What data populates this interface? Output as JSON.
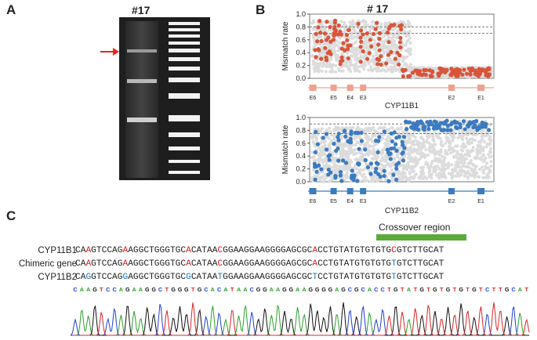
{
  "panels": {
    "a": "A",
    "b": "B",
    "c": "C"
  },
  "gel": {
    "title": "#17"
  },
  "plots_title": "# 17",
  "chart_data": [
    {
      "type": "scatter",
      "title": "# 17",
      "ylabel": "Mismatch rate",
      "xlabel": "CYP11B1",
      "ylim": [
        0,
        1
      ],
      "yticks": [
        "0.0",
        "0.2",
        "0.4",
        "0.6",
        "0.8",
        "1.0"
      ],
      "reference_lines": [
        0.8,
        0.7
      ],
      "exons": [
        "E6",
        "E5",
        "E4",
        "E3",
        "E2",
        "E1"
      ],
      "series": [
        {
          "color": "#d9553a",
          "pattern": "high mismatch (0.2–0.9) across E6–E3 region, low (0.05–0.15) across E3–E1 region"
        }
      ],
      "colors": {
        "points": "#d9553a",
        "background_points": "#d9d9d9"
      }
    },
    {
      "type": "scatter",
      "title": "",
      "ylabel": "Mismatch rate",
      "xlabel": "CYP11B2",
      "ylim": [
        0,
        1
      ],
      "yticks": [
        "0.0",
        "0.2",
        "0.4",
        "0.6",
        "0.8",
        "1.0"
      ],
      "reference_lines": [
        0.9,
        0.75
      ],
      "exons": [
        "E6",
        "E5",
        "E4",
        "E3",
        "E2",
        "E1"
      ],
      "series": [
        {
          "color": "#3b7bbf",
          "pattern": "low-to-mid mismatch (0.0–0.8) across E6–E3 region, high (0.8–0.95) across E3–E1 region"
        }
      ],
      "colors": {
        "points": "#3b7bbf",
        "background_points": "#d9d9d9"
      }
    }
  ],
  "alignment": {
    "crossover_label": "Crossover region",
    "rows": [
      {
        "label": "CYP11B1",
        "sequence": "CAAGTCCAGAAGGCTGGGTGCACATAACGGAAGGAAGGGGAGCGCACCTGTATGTGTGTGCGTCTTGCAT"
      },
      {
        "label": "Chimeric gene",
        "sequence": "CAAGTCCAGAAGGCTGGGTGCACATAACGGAAGGAAGGGGAGCGCACCTGTATGTGTGTGTGTCTTGCAT"
      },
      {
        "label": "CYP11B2",
        "sequence": "CAGGTCCAGGAGGCTGGGTGCGCATAATGGAAGGAAGGGGAGCGCTCCTGTATGTGTGTGTGTCTTGCAT"
      }
    ],
    "chromatogram_sequence": "CAAGTCCAGAAGGCTGGGTGCACATAACGGAAGGAAGGGGAGCGCACCTGTATGTGTGTGTGTCTTGCAT"
  },
  "colors": {
    "arrow": "#e8251f",
    "crossover_bar": "#5aab3c",
    "gel_bg": "#1e1e1e"
  }
}
